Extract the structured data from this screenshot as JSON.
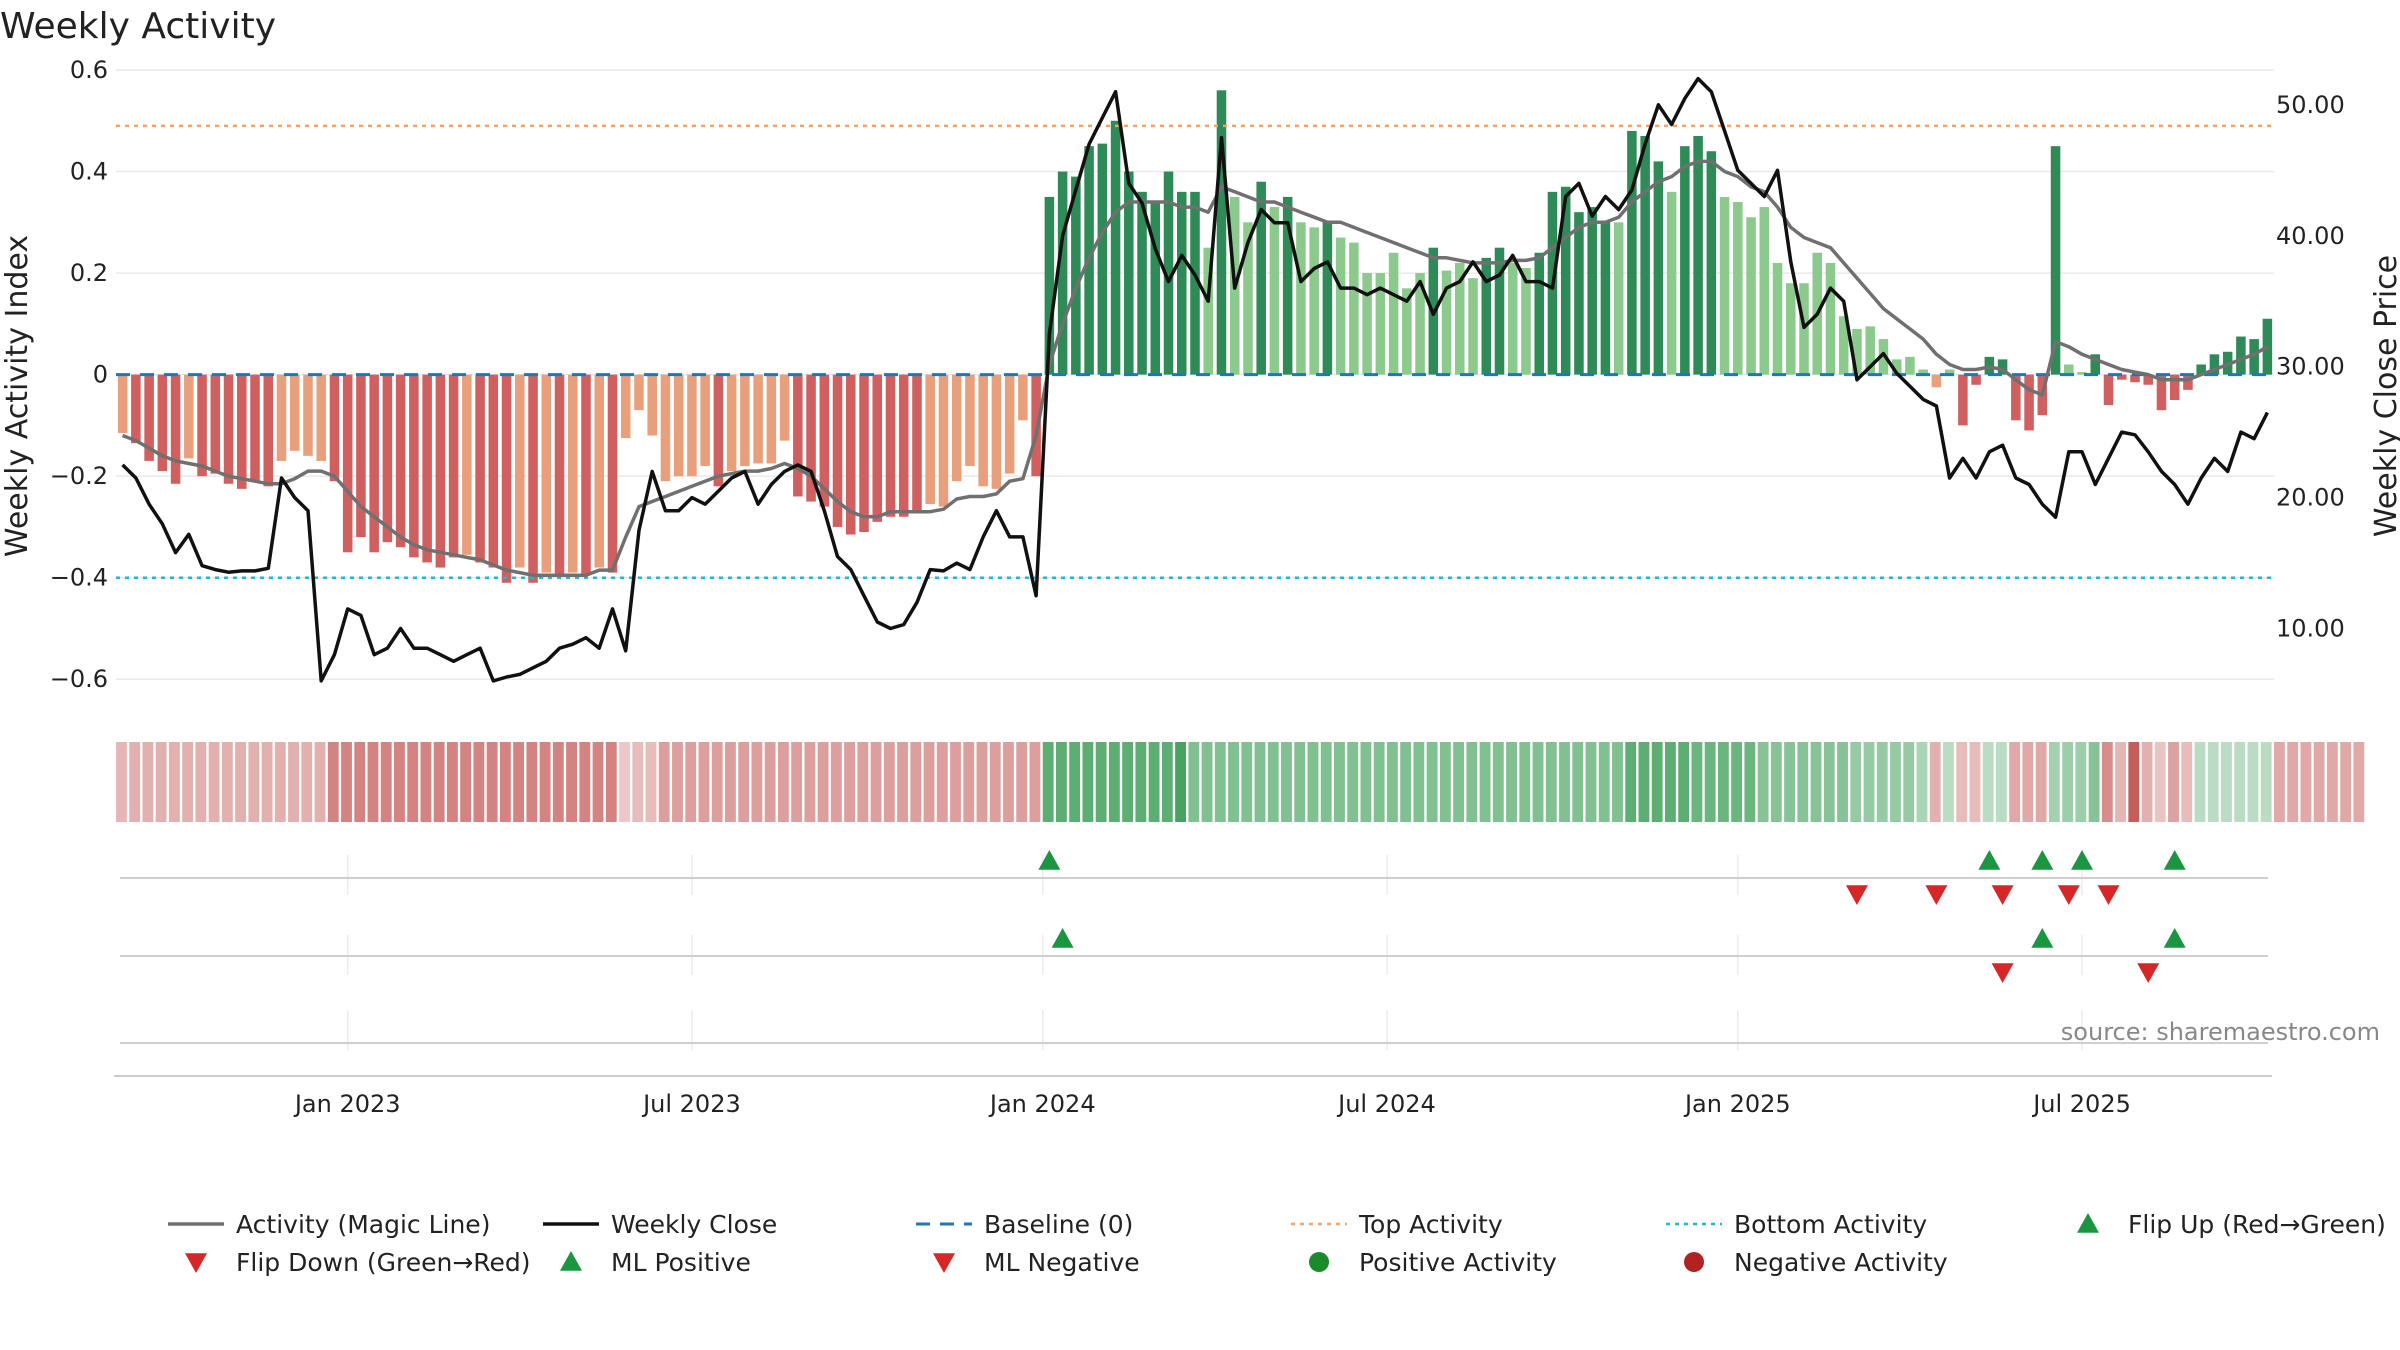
{
  "chart_data": {
    "type": "bar",
    "title": "Weekly Activity",
    "ylabel": "Weekly Activity Index",
    "y2label": "Weekly Close Price",
    "ylim": [
      -0.7,
      0.6
    ],
    "y2lim": [
      2.25,
      52.66
    ],
    "y_ticks": [
      "0.6",
      "0.4",
      "0.2",
      "0",
      "−0.2",
      "−0.4",
      "−0.6"
    ],
    "y_tick_values": [
      0.6,
      0.4,
      0.2,
      0,
      -0.2,
      -0.4,
      -0.6
    ],
    "y2_ticks": [
      "50.00",
      "40.00",
      "30.00",
      "20.00",
      "10.00"
    ],
    "y2_tick_values": [
      50,
      40,
      30,
      20,
      10
    ],
    "x_ticks": [
      "Jan 2023",
      "Jul 2023",
      "Jan 2024",
      "Jul 2024",
      "Jan 2025",
      "Jul 2025"
    ],
    "x_tick_weeks": [
      17.5,
      43.5,
      70,
      96,
      122.5,
      148.5
    ],
    "top_activity": 0.49,
    "bottom_activity": -0.4,
    "baseline": 0,
    "colors": {
      "pos_dark": "#2e8b57",
      "pos_light": "#8cc98c",
      "neg_dark": "#d05f5f",
      "neg_light": "#e8a07c",
      "strip_pos": "#47a35f",
      "strip_neg": "#c0504d",
      "magic": "#707070",
      "close": "#111111",
      "baseline": "#1f77b4",
      "top": "#f4a460",
      "bottom": "#17becf",
      "up_marker": "#1a9641",
      "down_marker": "#d62728"
    },
    "activity": [
      -0.115,
      -0.135,
      -0.17,
      -0.19,
      -0.215,
      -0.165,
      -0.2,
      -0.195,
      -0.215,
      -0.225,
      -0.21,
      -0.22,
      -0.17,
      -0.15,
      -0.16,
      -0.17,
      -0.21,
      -0.35,
      -0.32,
      -0.35,
      -0.33,
      -0.34,
      -0.36,
      -0.37,
      -0.38,
      -0.36,
      -0.355,
      -0.37,
      -0.38,
      -0.41,
      -0.38,
      -0.41,
      -0.39,
      -0.395,
      -0.39,
      -0.395,
      -0.38,
      -0.39,
      -0.125,
      -0.07,
      -0.12,
      -0.21,
      -0.2,
      -0.2,
      -0.18,
      -0.22,
      -0.19,
      -0.18,
      -0.175,
      -0.175,
      -0.13,
      -0.24,
      -0.25,
      -0.26,
      -0.3,
      -0.315,
      -0.31,
      -0.29,
      -0.28,
      -0.28,
      -0.27,
      -0.255,
      -0.26,
      -0.21,
      -0.18,
      -0.22,
      -0.225,
      -0.195,
      -0.09,
      -0.2,
      0.35,
      0.4,
      0.39,
      0.45,
      0.455,
      0.5,
      0.4,
      0.36,
      0.34,
      0.4,
      0.36,
      0.36,
      0.25,
      0.56,
      0.35,
      0.3,
      0.38,
      0.33,
      0.35,
      0.3,
      0.29,
      0.3,
      0.27,
      0.26,
      0.2,
      0.2,
      0.24,
      0.17,
      0.2,
      0.25,
      0.205,
      0.22,
      0.19,
      0.23,
      0.25,
      0.22,
      0.21,
      0.24,
      0.36,
      0.37,
      0.32,
      0.33,
      0.3,
      0.3,
      0.48,
      0.47,
      0.42,
      0.36,
      0.45,
      0.47,
      0.44,
      0.35,
      0.34,
      0.31,
      0.33,
      0.22,
      0.18,
      0.18,
      0.24,
      0.22,
      0.115,
      0.09,
      0.095,
      0.07,
      0.03,
      0.035,
      0.01,
      -0.025,
      0.01,
      -0.1,
      -0.02,
      0.035,
      0.03,
      -0.09,
      -0.11,
      -0.08,
      0.45,
      0.02,
      0.005,
      0.04,
      -0.06,
      -0.01,
      -0.015,
      -0.02,
      -0.07,
      -0.05,
      -0.03,
      0.02,
      0.04,
      0.045,
      0.075,
      0.07,
      0.11
    ],
    "magic_line": [
      -0.12,
      -0.13,
      -0.145,
      -0.16,
      -0.17,
      -0.175,
      -0.18,
      -0.19,
      -0.2,
      -0.205,
      -0.21,
      -0.215,
      -0.215,
      -0.205,
      -0.19,
      -0.19,
      -0.2,
      -0.23,
      -0.26,
      -0.28,
      -0.3,
      -0.32,
      -0.335,
      -0.345,
      -0.35,
      -0.355,
      -0.36,
      -0.365,
      -0.375,
      -0.385,
      -0.39,
      -0.395,
      -0.395,
      -0.395,
      -0.395,
      -0.395,
      -0.385,
      -0.385,
      -0.32,
      -0.26,
      -0.25,
      -0.24,
      -0.23,
      -0.22,
      -0.21,
      -0.2,
      -0.195,
      -0.19,
      -0.19,
      -0.185,
      -0.175,
      -0.185,
      -0.2,
      -0.225,
      -0.25,
      -0.27,
      -0.28,
      -0.28,
      -0.27,
      -0.27,
      -0.27,
      -0.27,
      -0.265,
      -0.245,
      -0.24,
      -0.24,
      -0.235,
      -0.21,
      -0.205,
      -0.12,
      0.02,
      0.1,
      0.17,
      0.23,
      0.28,
      0.32,
      0.34,
      0.34,
      0.34,
      0.34,
      0.33,
      0.33,
      0.32,
      0.37,
      0.36,
      0.35,
      0.34,
      0.34,
      0.33,
      0.32,
      0.31,
      0.3,
      0.3,
      0.29,
      0.28,
      0.27,
      0.26,
      0.25,
      0.24,
      0.23,
      0.23,
      0.225,
      0.22,
      0.22,
      0.22,
      0.225,
      0.225,
      0.23,
      0.25,
      0.27,
      0.29,
      0.3,
      0.3,
      0.31,
      0.34,
      0.36,
      0.38,
      0.39,
      0.41,
      0.42,
      0.42,
      0.4,
      0.39,
      0.37,
      0.36,
      0.33,
      0.29,
      0.27,
      0.26,
      0.25,
      0.22,
      0.19,
      0.16,
      0.13,
      0.11,
      0.09,
      0.07,
      0.04,
      0.02,
      0.01,
      0.01,
      0.015,
      0.01,
      -0.01,
      -0.03,
      -0.04,
      0.065,
      0.055,
      0.04,
      0.03,
      0.02,
      0.01,
      0.005,
      0.0,
      -0.01,
      -0.01,
      -0.01,
      0.0,
      0.01,
      0.02,
      0.03,
      0.04,
      0.055
    ],
    "weekly_close": [
      22.5,
      21.5,
      19.5,
      18.0,
      15.8,
      17.2,
      14.8,
      14.5,
      14.3,
      14.4,
      14.4,
      14.6,
      21.5,
      20.0,
      19.0,
      6.0,
      8.0,
      11.5,
      11.0,
      8.0,
      8.5,
      10.0,
      8.5,
      8.5,
      8.0,
      7.5,
      8.0,
      8.5,
      6.0,
      6.3,
      6.5,
      7.0,
      7.5,
      8.5,
      8.8,
      9.3,
      8.5,
      11.5,
      8.3,
      17.5,
      22.0,
      19.0,
      19.0,
      20.0,
      19.5,
      20.5,
      21.5,
      22.0,
      19.5,
      21.0,
      22.0,
      22.5,
      22.0,
      19.0,
      15.5,
      14.5,
      12.5,
      10.5,
      10.0,
      10.3,
      12.0,
      14.5,
      14.4,
      15.0,
      14.5,
      17.0,
      19.0,
      17.0,
      17.0,
      12.5,
      32.5,
      40.0,
      43.5,
      47.0,
      49.0,
      51.0,
      44.0,
      42.5,
      39.0,
      36.5,
      38.5,
      37.0,
      35.0,
      47.5,
      36.0,
      39.5,
      42.0,
      41.0,
      41.0,
      36.5,
      37.5,
      38.0,
      36.0,
      36.0,
      35.5,
      36.0,
      35.5,
      35.0,
      36.5,
      34.0,
      36.0,
      36.5,
      38.0,
      36.5,
      37.0,
      38.5,
      36.5,
      36.5,
      36.0,
      43.0,
      44.0,
      41.5,
      43.0,
      42.0,
      43.5,
      47.0,
      50.0,
      48.5,
      50.5,
      52.0,
      51.0,
      48.0,
      45.0,
      44.0,
      43.0,
      45.0,
      38.0,
      33.0,
      34.0,
      36.0,
      35.0,
      29.0,
      30.0,
      31.0,
      29.5,
      28.5,
      27.5,
      27.0,
      21.5,
      23.0,
      21.5,
      23.5,
      24.0,
      21.5,
      21.0,
      19.5,
      18.5,
      23.5,
      23.5,
      21.0,
      23.0,
      25.0,
      24.8,
      23.5,
      22.0,
      21.0,
      19.5,
      21.5,
      23.0,
      22.0,
      25.0,
      24.5,
      26.5
    ],
    "strip_intensity": [
      0.25,
      0.3,
      0.3,
      0.3,
      0.3,
      0.3,
      0.3,
      0.3,
      0.3,
      0.3,
      0.3,
      0.3,
      0.3,
      0.3,
      0.3,
      0.3,
      0.62,
      0.62,
      0.62,
      0.62,
      0.62,
      0.62,
      0.62,
      0.62,
      0.62,
      0.62,
      0.62,
      0.62,
      0.62,
      0.62,
      0.62,
      0.62,
      0.62,
      0.62,
      0.62,
      0.62,
      0.62,
      0.62,
      0.12,
      0.2,
      0.2,
      0.42,
      0.42,
      0.42,
      0.42,
      0.42,
      0.42,
      0.42,
      0.42,
      0.42,
      0.42,
      0.42,
      0.42,
      0.42,
      0.42,
      0.42,
      0.42,
      0.42,
      0.42,
      0.42,
      0.42,
      0.42,
      0.42,
      0.42,
      0.42,
      0.42,
      0.42,
      0.42,
      0.42,
      0.42,
      0.85,
      0.85,
      0.85,
      0.85,
      0.85,
      0.85,
      0.85,
      0.85,
      0.85,
      0.85,
      1.0,
      0.6,
      0.6,
      0.6,
      0.6,
      0.6,
      0.6,
      0.6,
      0.6,
      0.6,
      0.6,
      0.6,
      0.6,
      0.6,
      0.6,
      0.6,
      0.6,
      0.6,
      0.6,
      0.6,
      0.6,
      0.6,
      0.6,
      0.6,
      0.6,
      0.6,
      0.6,
      0.6,
      0.6,
      0.6,
      0.6,
      0.6,
      0.6,
      0.6,
      0.85,
      0.85,
      0.85,
      0.85,
      0.85,
      0.75,
      0.75,
      0.75,
      0.75,
      0.75,
      0.55,
      0.55,
      0.55,
      0.55,
      0.55,
      0.55,
      0.55,
      0.45,
      0.45,
      0.45,
      0.45,
      0.45,
      0.3,
      0.3,
      0.2,
      0.2,
      0.2,
      0.2,
      0.2,
      0.35,
      0.35,
      0.35,
      0.35,
      0.4,
      0.4,
      0.55,
      0.55,
      0.25,
      0.9,
      0.3,
      0.15,
      0.4,
      0.2,
      0.2,
      0.2,
      0.2,
      0.2,
      0.2,
      0.2,
      0.35,
      0.35,
      0.35,
      0.35,
      0.35,
      0.35,
      0.35
    ],
    "flip_up_weeks": [
      70
    ],
    "flip_down_weeks": [
      131
    ],
    "ml_positive_weeks": [
      71,
      141,
      145,
      148,
      155
    ],
    "ml_negative_weeks": [
      137,
      142,
      147,
      150,
      153
    ],
    "legend": [
      {
        "label": "Activity (Magic Line)",
        "kind": "line",
        "color": "#707070"
      },
      {
        "label": "Weekly Close",
        "kind": "line",
        "color": "#111111"
      },
      {
        "label": "Baseline (0)",
        "kind": "dash",
        "color": "#1f77b4"
      },
      {
        "label": "Top Activity",
        "kind": "dot",
        "color": "#f4a460"
      },
      {
        "label": "Bottom Activity",
        "kind": "dot",
        "color": "#17becf"
      },
      {
        "label": "Flip Up (Red→Green)",
        "kind": "tri-up",
        "color": "#1a9641"
      },
      {
        "label": "Flip Down (Green→Red)",
        "kind": "tri-down",
        "color": "#d62728"
      },
      {
        "label": "ML Positive",
        "kind": "tri-up",
        "color": "#1a9641"
      },
      {
        "label": "ML Negative",
        "kind": "tri-down",
        "color": "#d62728"
      },
      {
        "label": "Positive Activity",
        "kind": "circle",
        "color": "#1a8a2a"
      },
      {
        "label": "Negative Activity",
        "kind": "circle",
        "color": "#b22222"
      }
    ],
    "source": "source: sharemaestro.com"
  }
}
